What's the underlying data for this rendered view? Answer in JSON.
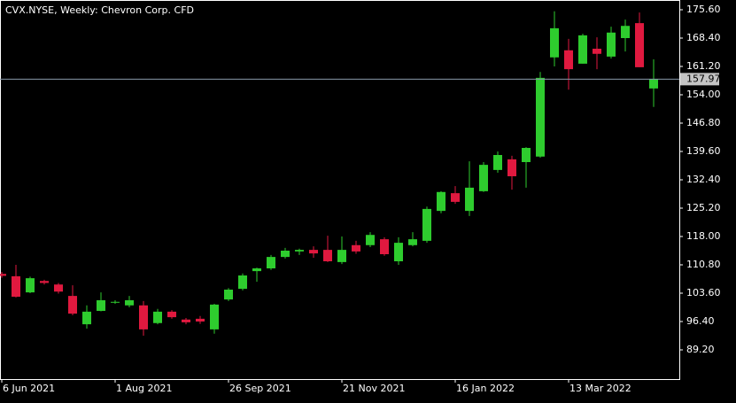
{
  "chart_data": {
    "type": "candlestick",
    "title": "CVX.NYSE, Weekly:  Chevron Corp. CFD",
    "categories": [
      "6 Jun 2021",
      null,
      null,
      null,
      null,
      null,
      null,
      null,
      "1 Aug 2021",
      null,
      null,
      null,
      null,
      null,
      null,
      null,
      "26 Sep 2021",
      null,
      null,
      null,
      null,
      null,
      null,
      null,
      "21 Nov 2021",
      null,
      null,
      null,
      null,
      null,
      null,
      null,
      "16 Jan 2022",
      null,
      null,
      null,
      null,
      null,
      null,
      null,
      "13 Mar 2022",
      null,
      null,
      null,
      null,
      null,
      null
    ],
    "open": [
      108.5,
      107.9,
      103.8,
      106.7,
      105.8,
      102.9,
      95.7,
      99.1,
      101.2,
      100.5,
      100.5,
      96.0,
      98.9,
      96.9,
      97.1,
      94.4,
      102.0,
      104.7,
      109.2,
      109.9,
      112.8,
      114.2,
      114.6,
      114.6,
      111.5,
      115.8,
      115.8,
      117.3,
      111.7,
      115.8,
      116.9,
      124.5,
      129.0,
      124.5,
      129.5,
      134.9,
      137.6,
      136.9,
      138.3,
      163.5,
      165.3,
      161.9,
      165.7,
      163.7,
      168.4,
      172.2,
      155.6
    ],
    "high": [
      109.0,
      110.8,
      107.8,
      107.0,
      106.2,
      105.6,
      100.5,
      103.8,
      101.8,
      102.9,
      101.6,
      99.6,
      99.3,
      97.3,
      97.8,
      100.9,
      104.9,
      108.6,
      110.1,
      113.3,
      115.1,
      114.9,
      115.5,
      118.2,
      118.0,
      116.9,
      119.1,
      117.8,
      117.8,
      119.1,
      125.6,
      129.5,
      130.8,
      137.1,
      136.9,
      139.6,
      138.5,
      140.7,
      159.8,
      175.2,
      168.2,
      169.5,
      168.6,
      171.3,
      173.1,
      174.9,
      163.0
    ],
    "low": [
      107.5,
      102.5,
      103.6,
      105.8,
      103.5,
      98.0,
      94.6,
      99.0,
      100.9,
      100.0,
      92.8,
      95.7,
      97.1,
      95.7,
      95.8,
      93.3,
      101.6,
      104.3,
      106.5,
      109.5,
      112.4,
      113.3,
      112.6,
      111.5,
      111.0,
      113.6,
      115.3,
      113.1,
      110.8,
      115.5,
      116.4,
      123.9,
      126.3,
      123.2,
      129.3,
      134.2,
      129.9,
      130.4,
      138.0,
      161.2,
      155.3,
      161.9,
      160.5,
      163.2,
      165.0,
      161.0,
      150.9
    ],
    "close": [
      108.0,
      102.7,
      107.4,
      106.2,
      104.0,
      98.4,
      98.9,
      101.8,
      101.4,
      101.8,
      94.4,
      98.9,
      97.5,
      96.2,
      96.4,
      100.7,
      104.5,
      108.1,
      109.9,
      112.8,
      114.4,
      114.6,
      113.7,
      111.7,
      114.6,
      114.2,
      118.4,
      113.5,
      116.4,
      117.3,
      125.0,
      129.3,
      126.8,
      130.4,
      136.2,
      138.7,
      133.3,
      140.5,
      158.3,
      170.9,
      160.5,
      169.1,
      164.4,
      169.8,
      171.5,
      161.0,
      157.97
    ],
    "up_color": "#2ecc2e",
    "down_color": "#e0193f",
    "last_price": 157.97,
    "ylim": [
      81.775,
      178.075
    ],
    "yticks": [
      {
        "value": 175.6,
        "label": "175.60"
      },
      {
        "value": 168.4,
        "label": "168.40"
      },
      {
        "value": 161.2,
        "label": "161.20"
      },
      {
        "value": 154,
        "label": "154.00"
      },
      {
        "value": 146.8,
        "label": "146.80"
      },
      {
        "value": 139.6,
        "label": "139.60"
      },
      {
        "value": 132.4,
        "label": "132.40"
      },
      {
        "value": 125.2,
        "label": "125.20"
      },
      {
        "value": 118,
        "label": "118.00"
      },
      {
        "value": 110.8,
        "label": "110.80"
      },
      {
        "value": 103.6,
        "label": "103.60"
      },
      {
        "value": 96.4,
        "label": "96.40"
      },
      {
        "value": 89.2,
        "label": "89.20"
      }
    ]
  }
}
